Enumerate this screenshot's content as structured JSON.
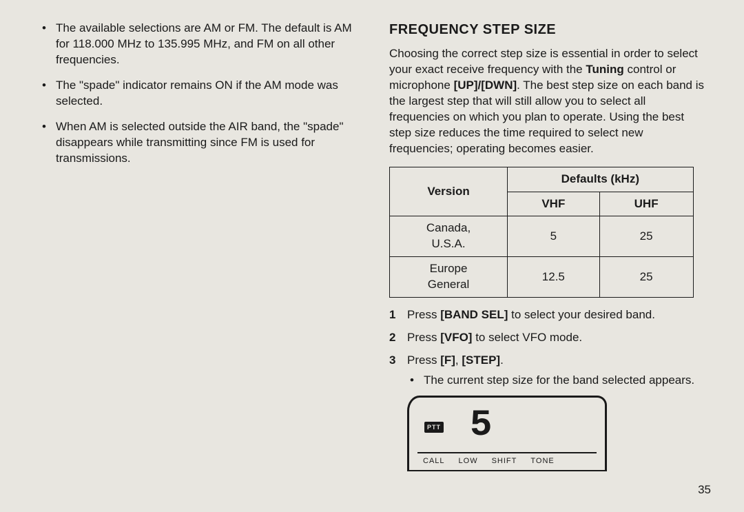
{
  "left": {
    "bullets": [
      "The available selections are AM or FM.  The default is AM for 118.000 MHz to 135.995 MHz, and FM on all other frequencies.",
      "The \"spade\" indicator remains ON if the AM mode was selected.",
      "When AM is selected outside the AIR band, the \"spade\" disappears while transmitting since FM is used for transmissions."
    ]
  },
  "right": {
    "title": "FREQUENCY STEP SIZE",
    "intro_parts": [
      "Choosing the correct step size is essential in order to select your exact receive frequency with the ",
      "Tuning",
      " control or microphone ",
      "[UP]/[DWN]",
      ".  The best step size on each band is the largest step that will still allow you to select all frequencies on which you plan to operate. Using the best step size reduces the time required to select new frequencies; operating becomes easier."
    ],
    "table": {
      "header_version": "Version",
      "header_defaults": "Defaults (kHz)",
      "header_vhf": "VHF",
      "header_uhf": "UHF",
      "rows": [
        {
          "label": "Canada,\nU.S.A.",
          "vhf": "5",
          "uhf": "25"
        },
        {
          "label": "Europe\nGeneral",
          "vhf": "12.5",
          "uhf": "25"
        }
      ]
    },
    "steps": [
      {
        "pre": "Press ",
        "key": "[BAND SEL]",
        "post": " to select your desired band."
      },
      {
        "pre": "Press ",
        "key": "[VFO]",
        "post": " to select VFO mode."
      },
      {
        "pre": "Press ",
        "key": "[F]",
        "mid": ", ",
        "key2": "[STEP]",
        "post": "."
      }
    ],
    "sub_bullet": "The current step size for the band selected appears.",
    "lcd": {
      "ptt": "PTT",
      "value": "5",
      "labels": [
        "CALL",
        "LOW",
        "SHIFT",
        "TONE"
      ]
    }
  },
  "page_number": "35"
}
